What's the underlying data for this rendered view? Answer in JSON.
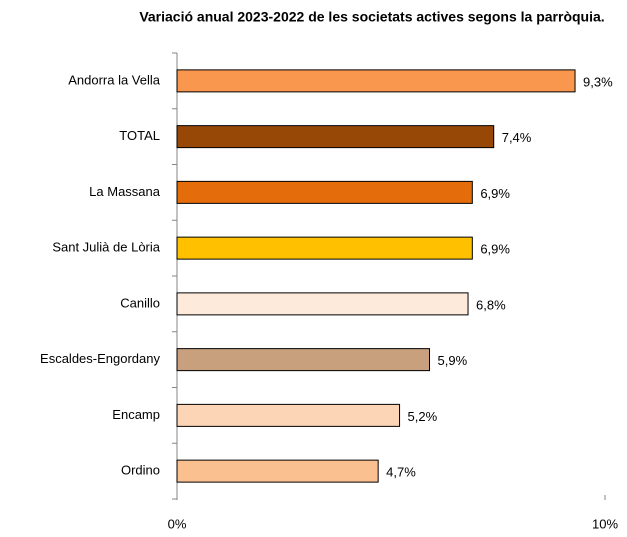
{
  "chart_data": {
    "type": "bar",
    "orientation": "horizontal",
    "title": "Variació anual 2023-2022  de les societats actives segons la parròquia.",
    "categories": [
      "Andorra la Vella",
      "TOTAL",
      "La Massana",
      "Sant Julià de Lòria",
      "Canillo",
      "Escaldes-Engordany",
      "Encamp",
      "Ordino"
    ],
    "values": [
      9.3,
      7.4,
      6.9,
      6.9,
      6.8,
      5.9,
      5.2,
      4.7
    ],
    "value_labels": [
      "9,3%",
      "7,4%",
      "6,9%",
      "6,9%",
      "6,8%",
      "5,9%",
      "5,2%",
      "4,7%"
    ],
    "colors": [
      "#f9974f",
      "#974706",
      "#e46c0a",
      "#ffc000",
      "#fdeada",
      "#c9a07e",
      "#fbd5b5",
      "#fac090"
    ],
    "xlim": [
      0,
      10
    ],
    "xticks": [
      {
        "value": 0,
        "label": "0%"
      },
      {
        "value": 10,
        "label": "10%"
      }
    ],
    "grid": false
  }
}
